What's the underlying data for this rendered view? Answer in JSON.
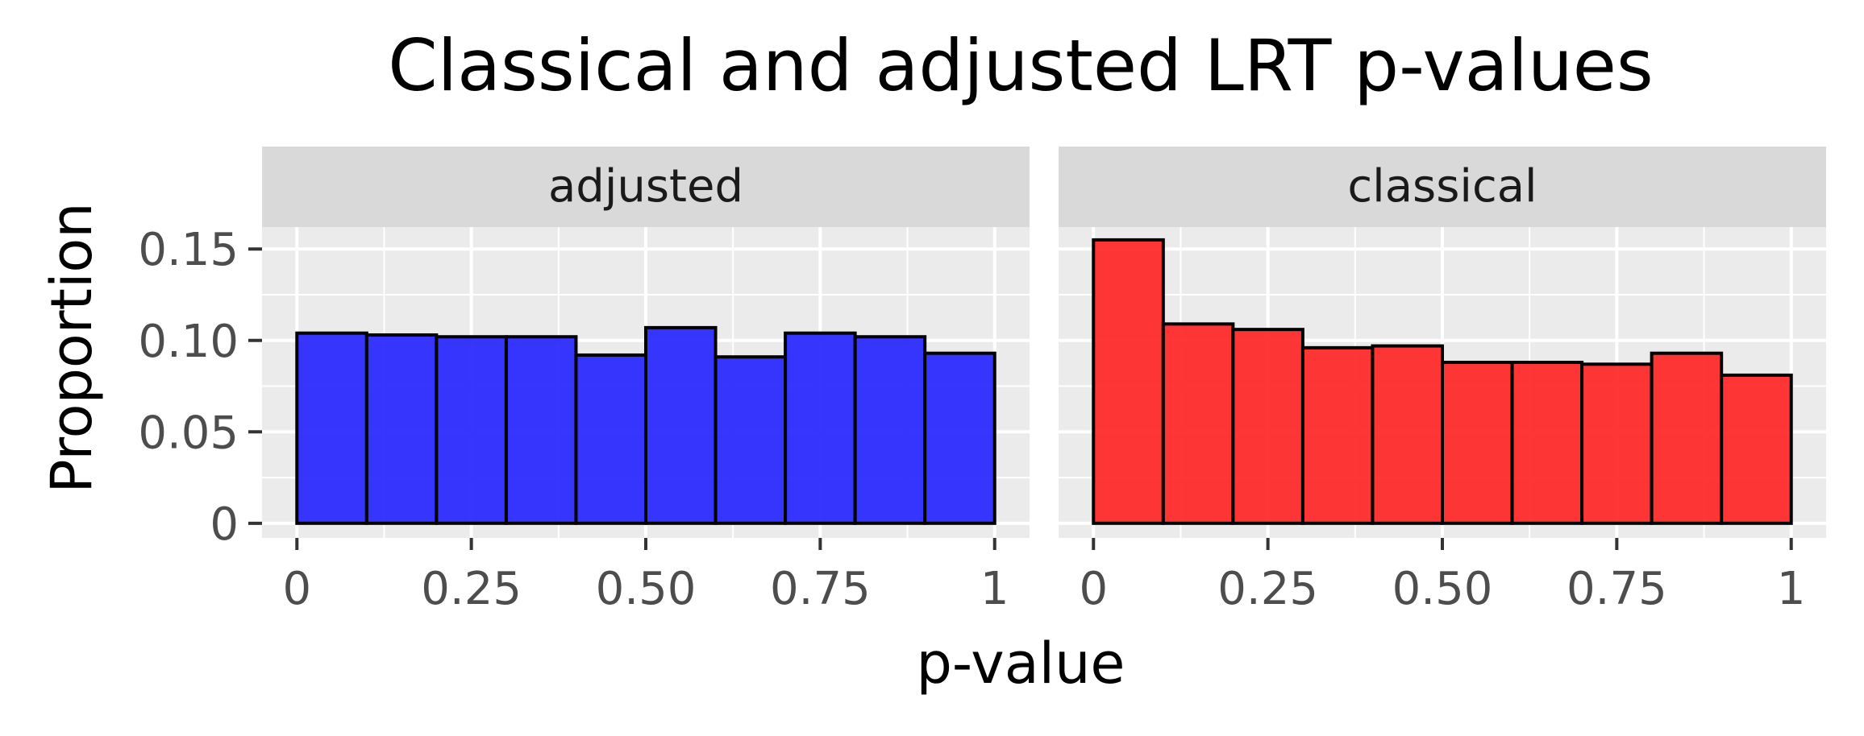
{
  "chart_data": {
    "type": "bar",
    "title": "Classical and adjusted LRT p-values",
    "xlabel": "p-value",
    "ylabel": "Proportion",
    "xlim": [
      -0.05,
      1.05
    ],
    "ylim": [
      -0.008,
      0.162
    ],
    "x_ticks": [
      0,
      0.25,
      0.5,
      0.75,
      1
    ],
    "x_tick_labels": [
      "0",
      "0.25",
      "0.50",
      "0.75",
      "1"
    ],
    "y_ticks": [
      0,
      0.05,
      0.1,
      0.15
    ],
    "y_tick_labels": [
      "0",
      "0.05",
      "0.10",
      "0.15"
    ],
    "bin_edges": [
      0,
      0.1,
      0.2,
      0.3,
      0.4,
      0.5,
      0.6,
      0.7,
      0.8,
      0.9,
      1.0
    ],
    "grid": true,
    "panels": [
      {
        "label": "adjusted",
        "color": "#2b2bff",
        "values": [
          0.104,
          0.103,
          0.102,
          0.102,
          0.092,
          0.107,
          0.091,
          0.104,
          0.102,
          0.093
        ]
      },
      {
        "label": "classical",
        "color": "#ff2b2b",
        "values": [
          0.155,
          0.109,
          0.106,
          0.096,
          0.097,
          0.088,
          0.088,
          0.087,
          0.093,
          0.081
        ]
      }
    ]
  }
}
